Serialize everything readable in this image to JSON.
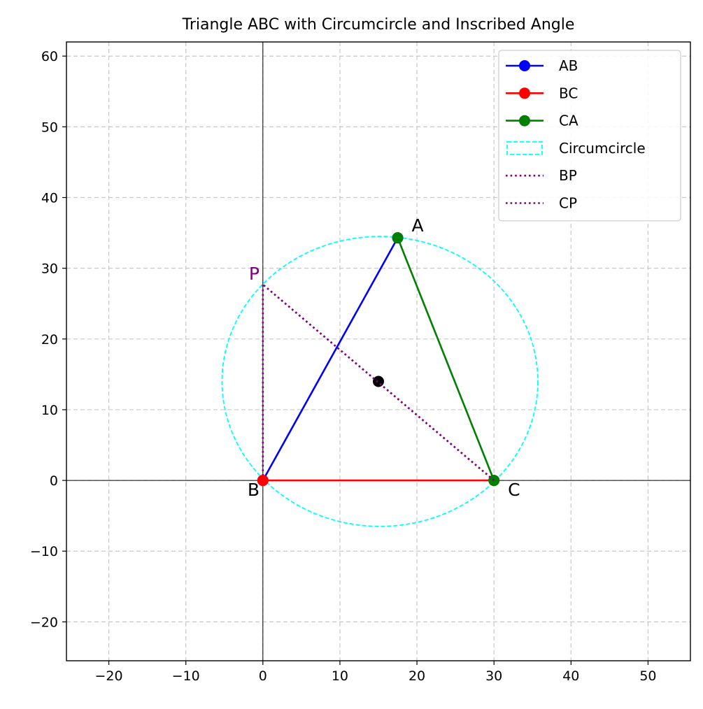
{
  "chart_data": {
    "type": "line",
    "title": "Triangle ABC with Circumcircle and Inscribed Angle",
    "xlabel": "",
    "ylabel": "",
    "xlim": [
      -25.5,
      55.5
    ],
    "ylim": [
      -25.5,
      62
    ],
    "xticks": [
      -20,
      -10,
      0,
      10,
      20,
      30,
      40,
      50
    ],
    "yticks": [
      -20,
      -10,
      0,
      10,
      20,
      30,
      40,
      50,
      60
    ],
    "xtick_labels": [
      "−20",
      "−10",
      "0",
      "10",
      "20",
      "30",
      "40",
      "50"
    ],
    "ytick_labels": [
      "−20",
      "−10",
      "0",
      "10",
      "20",
      "30",
      "40",
      "50",
      "60"
    ],
    "grid": true,
    "legend_position": "top-right",
    "points": {
      "A": [
        17.5,
        34.3
      ],
      "B": [
        0,
        0
      ],
      "C": [
        30,
        0
      ],
      "P": [
        0,
        27.7
      ],
      "O": [
        15,
        14
      ]
    },
    "point_labels": [
      {
        "text": "A",
        "at": "A",
        "color": "#000000"
      },
      {
        "text": "B",
        "at": "B",
        "color": "#000000"
      },
      {
        "text": "C",
        "at": "C",
        "color": "#000000"
      },
      {
        "text": "P",
        "at": "P",
        "color": "#800080"
      }
    ],
    "series": [
      {
        "name": "AB",
        "kind": "line-marker",
        "color": "#0000ff",
        "from": "A",
        "to": "B"
      },
      {
        "name": "BC",
        "kind": "line-marker",
        "color": "#ff0000",
        "from": "B",
        "to": "C"
      },
      {
        "name": "CA",
        "kind": "line-marker",
        "color": "#008000",
        "from": "C",
        "to": "A"
      },
      {
        "name": "Circumcircle",
        "kind": "circle-dashed",
        "color": "#00ffff",
        "center": [
          15.2,
          14
        ],
        "radius": 20.5
      },
      {
        "name": "BP",
        "kind": "dotted",
        "color": "#800080",
        "from": "B",
        "to": "P"
      },
      {
        "name": "CP",
        "kind": "dotted",
        "color": "#800080",
        "from": "C",
        "to": "P"
      }
    ],
    "center_marker": {
      "at": "O",
      "color": "#000000"
    }
  }
}
